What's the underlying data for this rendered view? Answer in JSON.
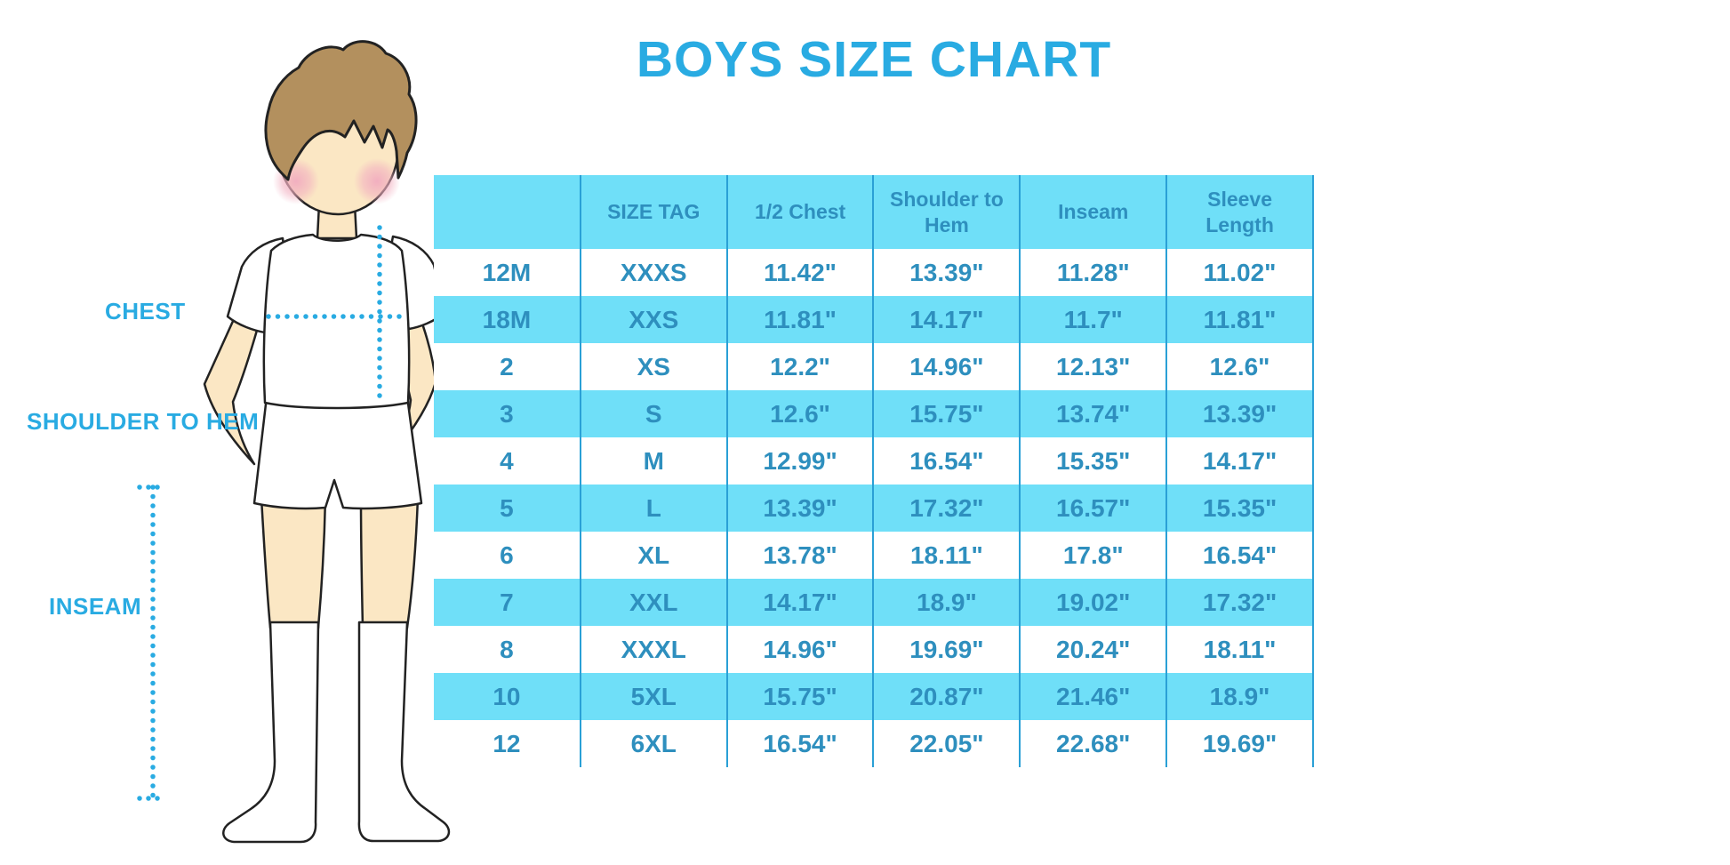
{
  "title": "BOYS SIZE CHART",
  "labels": {
    "chest": "CHEST",
    "shoulder_to_hem": "SHOULDER TO HEM",
    "inseam": "INSEAM"
  },
  "illustration": {
    "name": "boy-figure-with-measurement-lines",
    "measure_lines": [
      "chest",
      "shoulder-to-hem",
      "inseam"
    ]
  },
  "table": {
    "columns": [
      "",
      "SIZE TAG",
      "1/2 Chest",
      "Shoulder to Hem",
      "Inseam",
      "Sleeve Length"
    ],
    "rows": [
      [
        "12M",
        "XXXS",
        "11.42\"",
        "13.39\"",
        "11.28\"",
        "11.02\""
      ],
      [
        "18M",
        "XXS",
        "11.81\"",
        "14.17\"",
        "11.7\"",
        "11.81\""
      ],
      [
        "2",
        "XS",
        "12.2\"",
        "14.96\"",
        "12.13\"",
        "12.6\""
      ],
      [
        "3",
        "S",
        "12.6\"",
        "15.75\"",
        "13.74\"",
        "13.39\""
      ],
      [
        "4",
        "M",
        "12.99\"",
        "16.54\"",
        "15.35\"",
        "14.17\""
      ],
      [
        "5",
        "L",
        "13.39\"",
        "17.32\"",
        "16.57\"",
        "15.35\""
      ],
      [
        "6",
        "XL",
        "13.78\"",
        "18.11\"",
        "17.8\"",
        "16.54\""
      ],
      [
        "7",
        "XXL",
        "14.17\"",
        "18.9\"",
        "19.02\"",
        "17.32\""
      ],
      [
        "8",
        "XXXL",
        "14.96\"",
        "19.69\"",
        "20.24\"",
        "18.11\""
      ],
      [
        "10",
        "5XL",
        "15.75\"",
        "20.87\"",
        "21.46\"",
        "18.9\""
      ],
      [
        "12",
        "6XL",
        "16.54\"",
        "22.05\"",
        "22.68\"",
        "19.69\""
      ]
    ]
  },
  "colors": {
    "accent": "#29ABE2",
    "table_fill": "#6FDFF8",
    "table_text": "#2E8FBE",
    "table_line": "#2AA0D6",
    "skin": "#FBE7C4",
    "hair": "#B3905E",
    "blush": "#F2AFC0",
    "outline": "#222222"
  }
}
